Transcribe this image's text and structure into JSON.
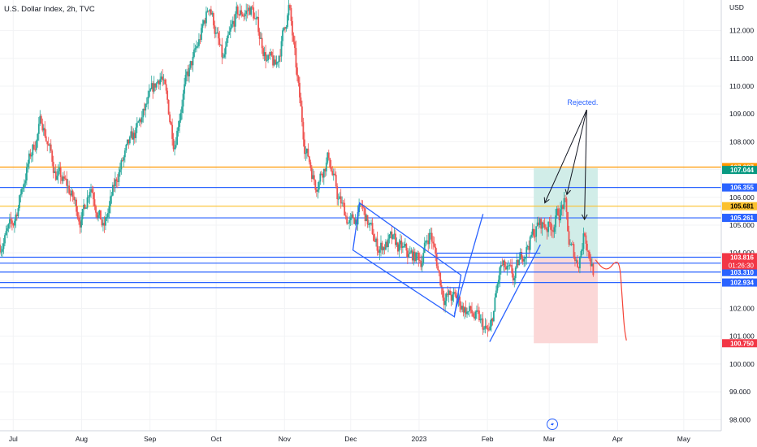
{
  "header": {
    "title": "U.S. Dollar Index, 2h, TVC",
    "currency": "USD"
  },
  "colors": {
    "up": "#26a69a",
    "down": "#ef5350",
    "drawing_blue": "#2962ff",
    "orange": "#ff9800",
    "yellow": "#fbc02d",
    "projection": "#f44336",
    "target_zone": "#d1ede8",
    "stop_zone": "#fbd7d7",
    "gridline": "#f2f3f5",
    "axis_line": "#d1d4dc"
  },
  "chart_data": {
    "type": "candlestick",
    "title": "U.S. Dollar Index, 2h, TVC",
    "ylim": [
      97.6,
      113.1
    ],
    "yticks": [
      98,
      99,
      100,
      101,
      102,
      103,
      104,
      105,
      106,
      107,
      108,
      109,
      110,
      111,
      112
    ],
    "y_tick_labels": [
      "98.000",
      "99.000",
      "100.000",
      "101.000",
      "102.000",
      "103.000",
      "104.000",
      "105.000",
      "106.000",
      "107.000",
      "108.000",
      "109.000",
      "110.000",
      "111.000",
      "112.000"
    ],
    "xlim": [
      "2022-06-25",
      "2023-05-18"
    ],
    "x_ticks": [
      {
        "date": "2022-07-01",
        "label": "Jul"
      },
      {
        "date": "2022-08-01",
        "label": "Aug"
      },
      {
        "date": "2022-09-01",
        "label": "Sep"
      },
      {
        "date": "2022-10-01",
        "label": "Oct"
      },
      {
        "date": "2022-11-01",
        "label": "Nov"
      },
      {
        "date": "2022-12-01",
        "label": "Dec"
      },
      {
        "date": "2023-01-01",
        "label": "2023"
      },
      {
        "date": "2023-02-01",
        "label": "Feb"
      },
      {
        "date": "2023-03-01",
        "label": "Mar"
      },
      {
        "date": "2023-04-01",
        "label": "Apr"
      },
      {
        "date": "2023-05-01",
        "label": "May"
      }
    ],
    "price_path": [
      [
        "2022-06-25",
        104.3
      ],
      [
        "2022-07-01",
        105.0
      ],
      [
        "2022-07-07",
        107.0
      ],
      [
        "2022-07-14",
        108.8
      ],
      [
        "2022-07-20",
        106.9
      ],
      [
        "2022-07-26",
        106.3
      ],
      [
        "2022-08-01",
        105.2
      ],
      [
        "2022-08-05",
        106.6
      ],
      [
        "2022-08-11",
        104.8
      ],
      [
        "2022-08-18",
        107.0
      ],
      [
        "2022-08-25",
        108.2
      ],
      [
        "2022-09-01",
        109.5
      ],
      [
        "2022-09-06",
        110.5
      ],
      [
        "2022-09-12",
        108.0
      ],
      [
        "2022-09-16",
        109.8
      ],
      [
        "2022-09-23",
        111.5
      ],
      [
        "2022-09-28",
        113.0
      ],
      [
        "2022-10-04",
        110.8
      ],
      [
        "2022-10-10",
        112.5
      ],
      [
        "2022-10-17",
        112.8
      ],
      [
        "2022-10-24",
        111.0
      ],
      [
        "2022-10-28",
        110.6
      ],
      [
        "2022-11-03",
        112.9
      ],
      [
        "2022-11-07",
        110.0
      ],
      [
        "2022-11-10",
        108.0
      ],
      [
        "2022-11-15",
        106.5
      ],
      [
        "2022-11-21",
        107.5
      ],
      [
        "2022-11-25",
        106.0
      ],
      [
        "2022-12-01",
        105.0
      ],
      [
        "2022-12-06",
        105.6
      ],
      [
        "2022-12-13",
        104.2
      ],
      [
        "2022-12-19",
        104.4
      ],
      [
        "2022-12-27",
        103.9
      ],
      [
        "2023-01-02",
        103.8
      ],
      [
        "2023-01-06",
        104.8
      ],
      [
        "2023-01-12",
        102.5
      ],
      [
        "2023-01-18",
        102.3
      ],
      [
        "2023-01-26",
        101.7
      ],
      [
        "2023-02-02",
        101.0
      ],
      [
        "2023-02-07",
        103.5
      ],
      [
        "2023-02-13",
        103.0
      ],
      [
        "2023-02-17",
        104.0
      ],
      [
        "2023-02-24",
        105.0
      ],
      [
        "2023-03-02",
        105.0
      ],
      [
        "2023-03-08",
        105.8
      ],
      [
        "2023-03-10",
        104.3
      ],
      [
        "2023-03-14",
        103.6
      ],
      [
        "2023-03-17",
        104.8
      ],
      [
        "2023-03-21",
        103.4
      ]
    ],
    "horizontal_levels": [
      {
        "price": 107.087,
        "color": "orange"
      },
      {
        "price": 106.355,
        "color": "blue"
      },
      {
        "price": 105.681,
        "color": "yellow"
      },
      {
        "price": 105.261,
        "color": "blue"
      },
      {
        "price": 103.844,
        "color": "blue"
      },
      {
        "price": 103.63,
        "color": "blue"
      },
      {
        "price": 103.31,
        "color": "blue"
      },
      {
        "price": 102.934,
        "color": "blue"
      }
    ],
    "short_position": {
      "start": "2023-02-22",
      "end": "2023-03-23",
      "target_top": 107.044,
      "entry": 103.8,
      "stop_bottom": 100.75
    },
    "projection_path": [
      [
        "2023-03-22",
        103.75
      ],
      [
        "2023-03-25",
        103.45
      ],
      [
        "2023-03-28",
        103.4
      ],
      [
        "2023-03-31",
        103.7
      ],
      [
        "2023-04-02",
        103.6
      ],
      [
        "2023-04-03",
        102.5
      ],
      [
        "2023-04-04",
        101.3
      ],
      [
        "2023-04-05",
        100.85
      ]
    ],
    "price_badges": [
      {
        "price": 107.087,
        "label": "107.087",
        "bg": "#ff9800",
        "fg": "#ffffff"
      },
      {
        "price": 106.985,
        "label": "107.044",
        "bg": "#089981",
        "fg": "#ffffff"
      },
      {
        "price": 106.355,
        "label": "106.355",
        "bg": "#2962ff",
        "fg": "#ffffff"
      },
      {
        "price": 105.681,
        "label": "105.681",
        "bg": "#fbc02d",
        "fg": "#000000"
      },
      {
        "price": 105.261,
        "label": "105.261",
        "bg": "#2962ff",
        "fg": "#ffffff"
      },
      {
        "price": 103.844,
        "label": "103.844",
        "bg": "#2962ff",
        "fg": "#ffffff"
      },
      {
        "price": 103.63,
        "label": "103.630",
        "bg": "#2962ff",
        "fg": "#ffffff"
      },
      {
        "price": 103.626,
        "label": "103.626",
        "bg": "#2962ff",
        "fg": "#ffffff"
      },
      {
        "price": 103.31,
        "label": "103.310",
        "bg": "#2962ff",
        "fg": "#ffffff"
      },
      {
        "price": 102.934,
        "label": "102.934",
        "bg": "#2962ff",
        "fg": "#ffffff"
      },
      {
        "price": 100.75,
        "label": "100.750",
        "bg": "#f23645",
        "fg": "#ffffff"
      }
    ],
    "current_price": {
      "label": "103.816",
      "countdown": "01:26:30"
    },
    "annotation": {
      "text": "Rejected.",
      "anchor": [
        "2023-03-18",
        109.15
      ],
      "targets": [
        [
          "2023-02-27",
          105.8
        ],
        [
          "2023-03-09",
          106.1
        ],
        [
          "2023-03-17",
          105.2
        ]
      ]
    },
    "channels": [
      {
        "kind": "falling-channel",
        "points": [
          [
            "2022-12-05",
            105.8
          ],
          [
            "2023-01-20",
            103.2
          ],
          [
            "2023-01-17",
            101.7
          ],
          [
            "2022-12-02",
            104.1
          ]
        ]
      },
      {
        "kind": "rising-trendline",
        "points": [
          [
            "2023-01-17",
            101.8
          ],
          [
            "2023-01-30",
            105.4
          ]
        ]
      },
      {
        "kind": "rising-trendline",
        "points": [
          [
            "2023-02-02",
            100.8
          ],
          [
            "2023-02-25",
            104.3
          ]
        ]
      },
      {
        "kind": "short-level",
        "points": [
          [
            "2023-01-09",
            103.99
          ],
          [
            "2023-02-25",
            103.99
          ]
        ]
      },
      {
        "kind": "long-level",
        "points": [
          [
            "2022-06-25",
            102.75
          ],
          [
            "2023-01-20",
            102.75
          ]
        ]
      }
    ]
  }
}
